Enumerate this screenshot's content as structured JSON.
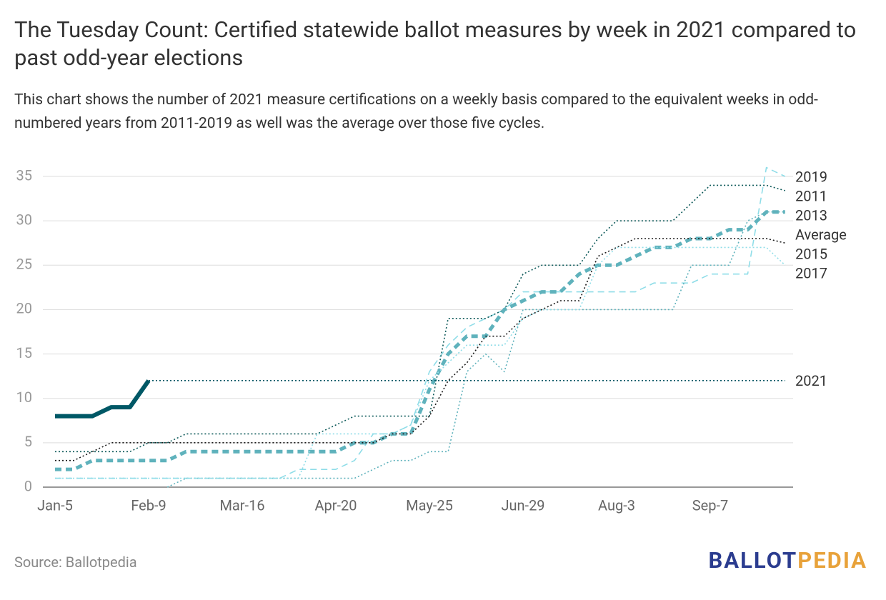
{
  "title": "The Tuesday Count: Certified statewide ballot measures by week in 2021 compared to past odd-year elections",
  "subtitle": "This chart shows the number of 2021 measure certifications on a weekly basis compared to the equivalent weeks in odd-numbered years from 2011-2019 as well was the average over those five cycles.",
  "source": "Source: Ballotpedia",
  "brand": [
    "BALLOT",
    "PEDIA"
  ],
  "chart_data": {
    "type": "line",
    "categories": [
      "Jan-5",
      null,
      null,
      null,
      null,
      "Feb-9",
      null,
      null,
      null,
      null,
      "Mar-16",
      null,
      null,
      null,
      null,
      "Apr-20",
      null,
      null,
      null,
      null,
      "May-25",
      null,
      null,
      null,
      null,
      "Jun-29",
      null,
      null,
      null,
      null,
      "Aug-3",
      null,
      null,
      null,
      null,
      "Sep-7",
      null,
      null,
      null,
      null
    ],
    "ylim": [
      0,
      35
    ],
    "yticks": [
      0,
      5,
      10,
      15,
      20,
      25,
      30,
      35
    ],
    "grid": true,
    "series": [
      {
        "name": "2019",
        "color": "#8fdde8",
        "dash": "dashed",
        "values": [
          1,
          1,
          1,
          1,
          1,
          1,
          1,
          1,
          1,
          1,
          1,
          1,
          1,
          2,
          2,
          2,
          3,
          6,
          6,
          7,
          13,
          16,
          18,
          19,
          20,
          22,
          22,
          22,
          22,
          22,
          22,
          22,
          23,
          23,
          23,
          24,
          24,
          24,
          36,
          35
        ]
      },
      {
        "name": "2011",
        "color": "#0e5a5a",
        "dash": "dotted",
        "values": [
          4,
          4,
          4,
          4,
          4,
          5,
          5,
          6,
          6,
          6,
          6,
          6,
          6,
          6,
          6,
          7,
          8,
          8,
          8,
          8,
          8,
          19,
          19,
          19,
          20,
          24,
          25,
          25,
          25,
          28,
          30,
          30,
          30,
          30,
          32,
          34,
          34,
          34,
          34,
          33.4
        ]
      },
      {
        "name": "2013",
        "color": "#5fb2bc",
        "dash": "dotted",
        "values": [
          null,
          null,
          null,
          null,
          null,
          null,
          0,
          1,
          1,
          1,
          1,
          1,
          1,
          1,
          1,
          1,
          1,
          2,
          3,
          3,
          4,
          4,
          13,
          15,
          13,
          20,
          20,
          20,
          20,
          20,
          20,
          20,
          20,
          20,
          25,
          25,
          25,
          30,
          31,
          31
        ]
      },
      {
        "name": "Average",
        "color": "#5fb2bc",
        "dash": "dashed",
        "bold": true,
        "values": [
          2,
          2,
          3,
          3,
          3,
          3,
          3,
          4,
          4,
          4,
          4,
          4,
          4,
          4,
          4,
          4,
          5,
          5,
          6,
          6,
          11,
          15,
          17,
          17,
          20,
          21,
          22,
          22,
          24,
          25,
          25,
          26,
          27,
          27,
          28,
          28,
          29,
          29,
          31,
          31
        ]
      },
      {
        "name": "2015",
        "color": "#1a1a1a",
        "dash": "dotted",
        "values": [
          3,
          3,
          4,
          5,
          5,
          5,
          5,
          5,
          5,
          5,
          5,
          5,
          5,
          5,
          5,
          5,
          5,
          5,
          6,
          6,
          8,
          12,
          14,
          17,
          17,
          19,
          20,
          21,
          21,
          26,
          27,
          28,
          28,
          28,
          28,
          28,
          28,
          28,
          28,
          27.5
        ]
      },
      {
        "name": "2017",
        "color": "#8fdde8",
        "dash": "dotted",
        "values": [
          1,
          1,
          1,
          1,
          1,
          1,
          1,
          1,
          1,
          1,
          1,
          1,
          1,
          1,
          6,
          6,
          6,
          6,
          6,
          7,
          12,
          14,
          16,
          16,
          16,
          19,
          20,
          20,
          20,
          25,
          27,
          27,
          27,
          27,
          27,
          27,
          27,
          27,
          27,
          25
        ]
      },
      {
        "name": "2021",
        "color": "#005866",
        "dash": "solid",
        "bold": true,
        "projected": true,
        "values": [
          8,
          8,
          8,
          9,
          9,
          12,
          null,
          null,
          null,
          null,
          null,
          null,
          null,
          null,
          null,
          null,
          null,
          null,
          null,
          null,
          null,
          null,
          null,
          null,
          null,
          null,
          null,
          null,
          null,
          null,
          null,
          null,
          null,
          null,
          null,
          null,
          null,
          null,
          null,
          null
        ]
      }
    ]
  }
}
